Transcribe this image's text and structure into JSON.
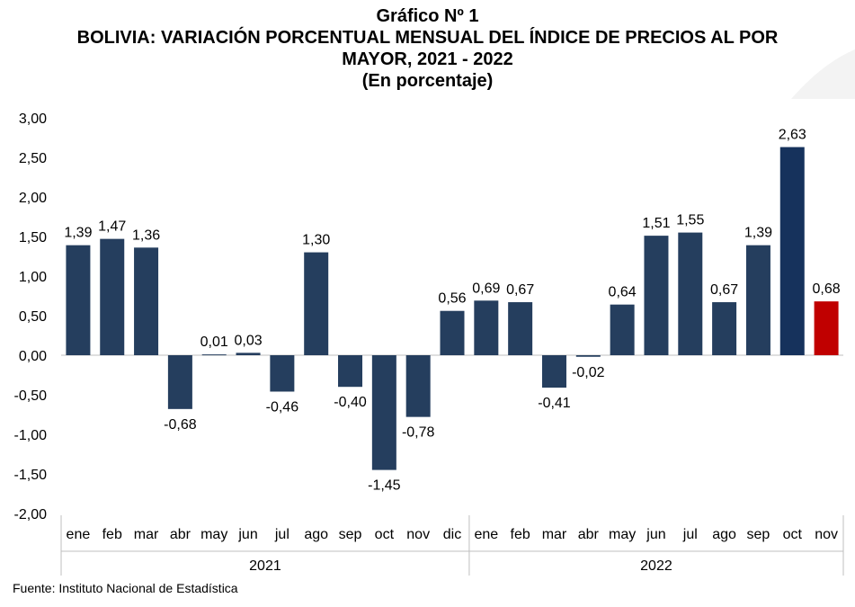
{
  "header": {
    "line1": "Gráfico Nº 1",
    "line2": "BOLIVIA: VARIACIÓN PORCENTUAL MENSUAL DEL ÍNDICE DE PRECIOS AL POR",
    "line3": "MAYOR, 2021 - 2022",
    "line4": "(En porcentaje)"
  },
  "source": "Fuente: Instituto Nacional de Estadística",
  "colors": {
    "bar": "#253e5e",
    "bar_oct_2022": "#16325c",
    "bar_last": "#c00000",
    "axis": "#bfbfbf"
  },
  "chart_data": {
    "type": "bar",
    "title": "BOLIVIA: VARIACIÓN PORCENTUAL MENSUAL DEL ÍNDICE DE PRECIOS AL POR MAYOR, 2021 - 2022",
    "subtitle": "(En porcentaje)",
    "ylim": [
      -2.0,
      3.0
    ],
    "yticks": [
      "3,00",
      "2,50",
      "2,00",
      "1,50",
      "1,00",
      "0,50",
      "0,00",
      "-0,50",
      "-1,00",
      "-1,50",
      "-2,00"
    ],
    "ytick_values": [
      3.0,
      2.5,
      2.0,
      1.5,
      1.0,
      0.5,
      0.0,
      -0.5,
      -1.0,
      -1.5,
      -2.0
    ],
    "grid": false,
    "categories": [
      "ene",
      "feb",
      "mar",
      "abr",
      "may",
      "jun",
      "jul",
      "ago",
      "sep",
      "oct",
      "nov",
      "dic",
      "ene",
      "feb",
      "mar",
      "abr",
      "may",
      "jun",
      "jul",
      "ago",
      "sep",
      "oct",
      "nov"
    ],
    "groups": [
      {
        "label": "2021",
        "count": 12
      },
      {
        "label": "2022",
        "count": 11
      }
    ],
    "values": [
      1.39,
      1.47,
      1.36,
      -0.68,
      0.01,
      0.03,
      -0.46,
      1.3,
      -0.4,
      -1.45,
      -0.78,
      0.56,
      0.69,
      0.67,
      -0.41,
      -0.02,
      0.64,
      1.51,
      1.55,
      0.67,
      1.39,
      2.63,
      0.68
    ],
    "labels": [
      "1,39",
      "1,47",
      "1,36",
      "-0,68",
      "0,01",
      "0,03",
      "-0,46",
      "1,30",
      "-0,40",
      "-1,45",
      "-0,78",
      "0,56",
      "0,69",
      "0,67",
      "-0,41",
      "-0,02",
      "0,64",
      "1,51",
      "1,55",
      "0,67",
      "1,39",
      "2,63",
      "0,68"
    ]
  }
}
